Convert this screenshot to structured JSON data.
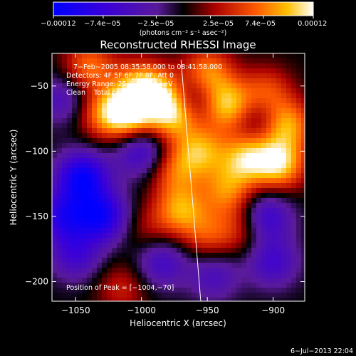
{
  "chart_data": {
    "type": "heatmap",
    "title": "Reconstructed RHESSI Image",
    "xlabel": "Heliocentric X (arcsec)",
    "ylabel": "Heliocentric Y (arcsec)",
    "xlim": [
      -1068,
      -876
    ],
    "ylim": [
      -215,
      -25
    ],
    "x_ticks": [
      -1050,
      -1000,
      -950,
      -900
    ],
    "y_ticks": [
      -50,
      -100,
      -150,
      -200
    ],
    "x_tick_labels": [
      "−1050",
      "−1000",
      "−950",
      "−900"
    ],
    "y_tick_labels": [
      "−50",
      "−100",
      "−150",
      "−200"
    ],
    "colorbar": {
      "range": [
        -0.00012,
        0.00012
      ],
      "tick_labels": [
        "−0.00012",
        "−7.4e−05",
        "−2.5e−05",
        "2.5e−05",
        "7.4e−05",
        "0.00012"
      ],
      "tick_values": [
        -0.00012,
        -7.4e-05,
        -2.5e-05,
        2.5e-05,
        7.4e-05,
        0.00012
      ],
      "label": "(photons cm⁻² s⁻¹ asec⁻²)"
    },
    "annotations": {
      "time": "7−Feb−2005 08:35:58.000 to 08:41:58.000",
      "detectors": "Detectors: 4F 5F 6F 7F 8F, Att 0",
      "energy": "Energy Range: 25.0 − 50.0 keV",
      "clean": "Clean    Total counts: 7.72E+03",
      "peak": "Position of Peak = [−1004,−70]"
    },
    "footer_date": "6−Jul−2013 22:04",
    "limb_line": [
      [
        -970,
        -30
      ],
      [
        -955,
        -215
      ]
    ],
    "blobs": [
      {
        "x": -1040,
        "y": -35,
        "v": 7e-05
      },
      {
        "x": -1005,
        "y": -45,
        "v": 4e-05
      },
      {
        "x": -990,
        "y": -55,
        "v": 9e-05
      },
      {
        "x": -1010,
        "y": -70,
        "v": 0.00012
      },
      {
        "x": -1030,
        "y": -72,
        "v": 6e-05
      },
      {
        "x": -975,
        "y": -72,
        "v": 0.0001
      },
      {
        "x": -950,
        "y": -40,
        "v": 8e-05
      },
      {
        "x": -935,
        "y": -65,
        "v": 0.0001
      },
      {
        "x": -905,
        "y": -55,
        "v": 6e-05
      },
      {
        "x": -890,
        "y": -80,
        "v": 9e-05
      },
      {
        "x": -955,
        "y": -100,
        "v": 8e-05
      },
      {
        "x": -975,
        "y": -115,
        "v": 6e-05
      },
      {
        "x": -920,
        "y": -105,
        "v": 9e-05
      },
      {
        "x": -895,
        "y": -110,
        "v": 0.0001
      },
      {
        "x": -935,
        "y": -130,
        "v": 7e-05
      },
      {
        "x": -970,
        "y": -145,
        "v": 8e-05
      },
      {
        "x": -950,
        "y": -165,
        "v": 5e-05
      },
      {
        "x": -995,
        "y": -160,
        "v": 3e-05
      },
      {
        "x": -925,
        "y": -160,
        "v": 4e-05
      },
      {
        "x": -1045,
        "y": -120,
        "v": -0.00011
      },
      {
        "x": -1030,
        "y": -150,
        "v": -0.0001
      },
      {
        "x": -1060,
        "y": -150,
        "v": -8e-05
      },
      {
        "x": -1000,
        "y": -100,
        "v": -7e-05
      },
      {
        "x": -1050,
        "y": -180,
        "v": -6e-05
      },
      {
        "x": -985,
        "y": -185,
        "v": -6e-05
      },
      {
        "x": -945,
        "y": -195,
        "v": -5e-05
      },
      {
        "x": -905,
        "y": -150,
        "v": -7e-05
      },
      {
        "x": -900,
        "y": -185,
        "v": -6e-05
      },
      {
        "x": -960,
        "y": -60,
        "v": -5e-05
      },
      {
        "x": -910,
        "y": -75,
        "v": -4e-05
      },
      {
        "x": -1015,
        "y": -205,
        "v": 4e-05
      },
      {
        "x": -1060,
        "y": -60,
        "v": -5e-05
      }
    ]
  }
}
